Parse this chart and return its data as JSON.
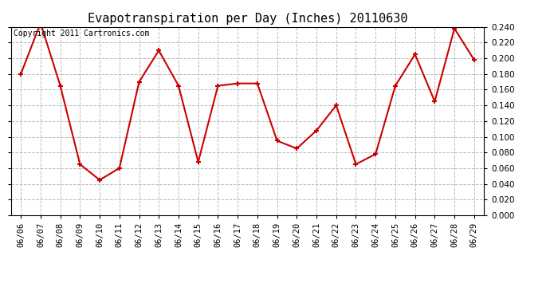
{
  "title": "Evapotranspiration per Day (Inches) 20110630",
  "copyright_text": "Copyright 2011 Cartronics.com",
  "dates": [
    "06/06",
    "06/07",
    "06/08",
    "06/09",
    "06/10",
    "06/11",
    "06/12",
    "06/13",
    "06/14",
    "06/15",
    "06/16",
    "06/17",
    "06/18",
    "06/19",
    "06/20",
    "06/21",
    "06/22",
    "06/23",
    "06/24",
    "06/25",
    "06/26",
    "06/27",
    "06/28",
    "06/29"
  ],
  "values": [
    0.18,
    0.245,
    0.165,
    0.065,
    0.045,
    0.06,
    0.17,
    0.21,
    0.165,
    0.068,
    0.165,
    0.168,
    0.168,
    0.095,
    0.085,
    0.108,
    0.14,
    0.065,
    0.078,
    0.165,
    0.205,
    0.145,
    0.238,
    0.198
  ],
  "line_color": "#cc0000",
  "marker": "+",
  "markersize": 5,
  "linewidth": 1.5,
  "ylim": [
    0.0,
    0.24
  ],
  "ytick_step": 0.02,
  "background_color": "#ffffff",
  "plot_bg_color": "#ffffff",
  "grid_color": "#bbbbbb",
  "title_fontsize": 11,
  "copyright_fontsize": 7,
  "tick_fontsize": 7.5
}
